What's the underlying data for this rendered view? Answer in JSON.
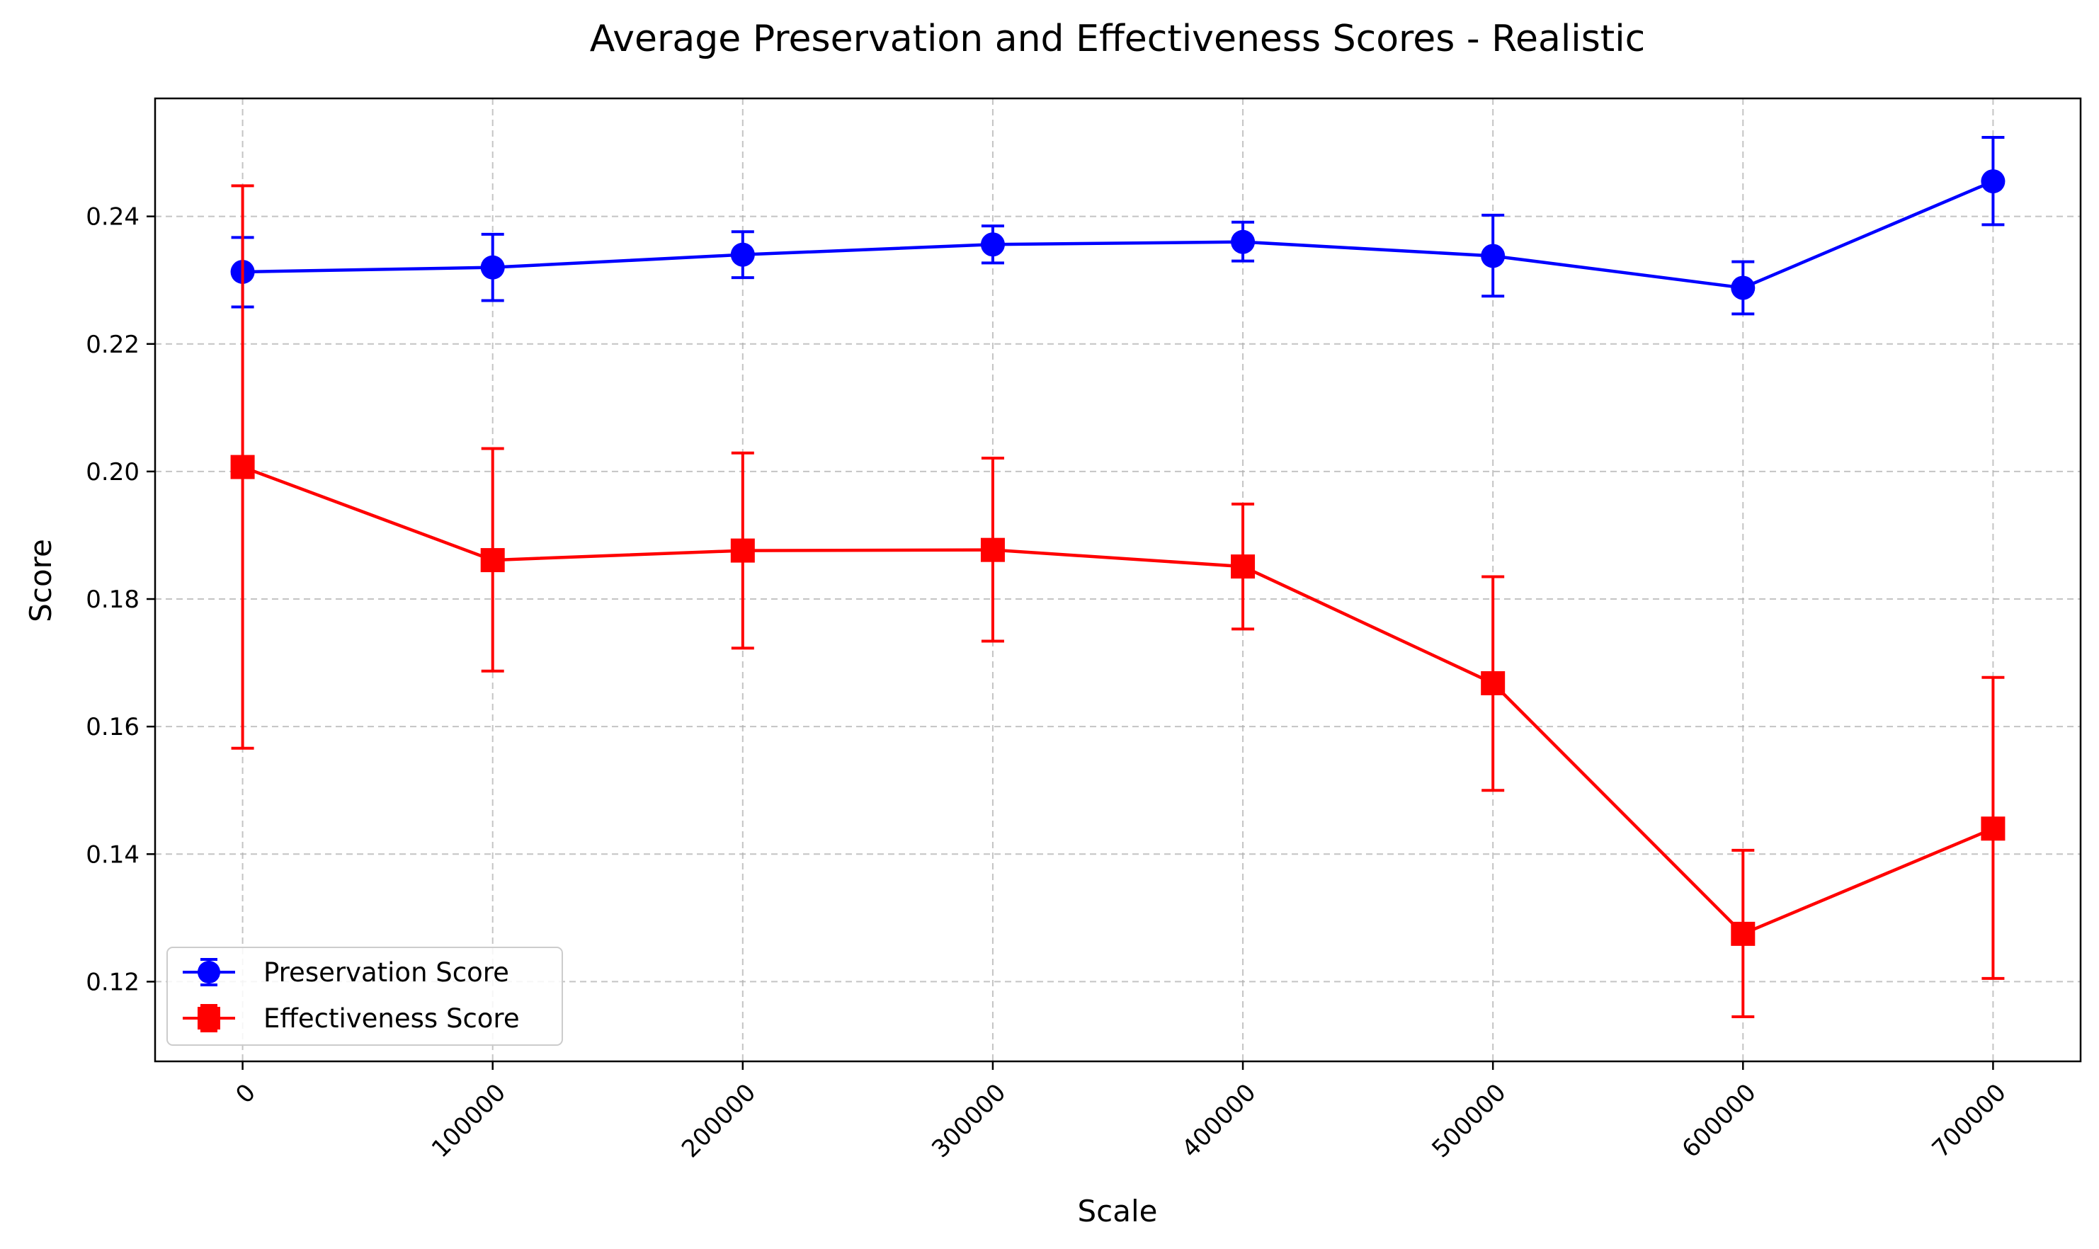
{
  "chart_data": {
    "type": "line",
    "title": "Average Preservation and Effectiveness Scores - Realistic",
    "xlabel": "Scale",
    "ylabel": "Score",
    "x": [
      0,
      100000,
      200000,
      300000,
      400000,
      500000,
      600000,
      700000
    ],
    "x_tick_labels": [
      "0",
      "100000",
      "200000",
      "300000",
      "400000",
      "500000",
      "600000",
      "700000"
    ],
    "y_ticks": [
      0.12,
      0.14,
      0.16,
      0.18,
      0.2,
      0.22,
      0.24
    ],
    "y_tick_labels": [
      "0.12",
      "0.14",
      "0.16",
      "0.18",
      "0.20",
      "0.22",
      "0.24"
    ],
    "xlim": [
      -35000,
      735000
    ],
    "ylim": [
      0.1075,
      0.2585
    ],
    "grid": true,
    "legend_position": "lower-left",
    "series": [
      {
        "name": "Preservation Score",
        "color": "#0000ff",
        "marker": "circle",
        "values": [
          0.2313,
          0.232,
          0.234,
          0.2356,
          0.236,
          0.2338,
          0.2288,
          0.2455
        ],
        "err_low": [
          0.2258,
          0.2268,
          0.2304,
          0.2327,
          0.233,
          0.2275,
          0.2247,
          0.2387
        ],
        "err_high": [
          0.2367,
          0.2372,
          0.2376,
          0.2385,
          0.2391,
          0.2402,
          0.2329,
          0.2524
        ]
      },
      {
        "name": "Effectiveness Score",
        "color": "#ff0000",
        "marker": "square",
        "values": [
          0.2007,
          0.1861,
          0.1876,
          0.1877,
          0.1851,
          0.1668,
          0.1275,
          0.144
        ],
        "err_low": [
          0.1566,
          0.1687,
          0.1723,
          0.1734,
          0.1753,
          0.15,
          0.1145,
          0.1205
        ],
        "err_high": [
          0.2448,
          0.2036,
          0.2029,
          0.2021,
          0.1949,
          0.1835,
          0.1406,
          0.1677
        ]
      }
    ]
  }
}
